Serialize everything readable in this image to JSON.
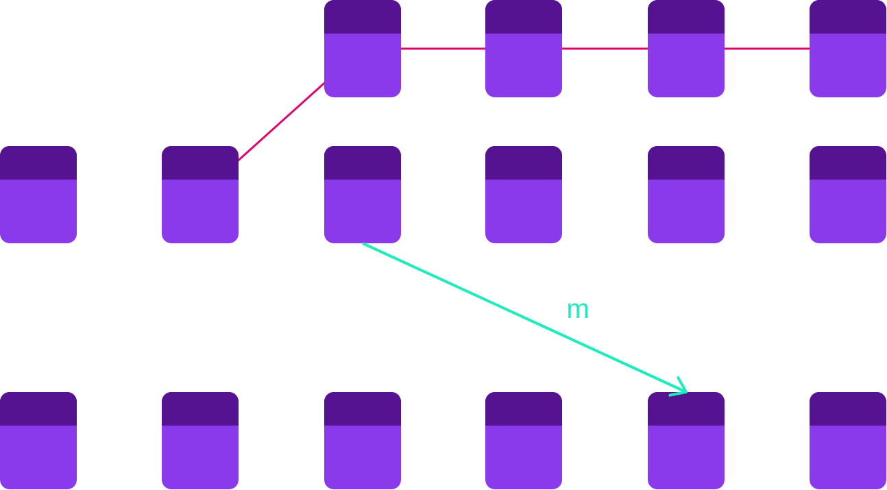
{
  "colors": {
    "background": "#ffffff",
    "node_header": "#561391",
    "node_body": "#8b3aeb",
    "path_line": "#e0056f",
    "arrow": "#20ebbd"
  },
  "nodes": [
    {
      "id": "r1c3",
      "row": 1,
      "col": 3
    },
    {
      "id": "r1c4",
      "row": 1,
      "col": 4
    },
    {
      "id": "r1c5",
      "row": 1,
      "col": 5
    },
    {
      "id": "r1c6",
      "row": 1,
      "col": 6
    },
    {
      "id": "r2c1",
      "row": 2,
      "col": 1
    },
    {
      "id": "r2c2",
      "row": 2,
      "col": 2
    },
    {
      "id": "r2c3",
      "row": 2,
      "col": 3
    },
    {
      "id": "r2c4",
      "row": 2,
      "col": 4
    },
    {
      "id": "r2c5",
      "row": 2,
      "col": 5
    },
    {
      "id": "r2c6",
      "row": 2,
      "col": 6
    },
    {
      "id": "r3c1",
      "row": 3,
      "col": 1
    },
    {
      "id": "r3c2",
      "row": 3,
      "col": 2
    },
    {
      "id": "r3c3",
      "row": 3,
      "col": 3
    },
    {
      "id": "r3c4",
      "row": 3,
      "col": 4
    },
    {
      "id": "r3c5",
      "row": 3,
      "col": 5
    },
    {
      "id": "r3c6",
      "row": 3,
      "col": 6
    }
  ],
  "path_edges": [
    {
      "from": "r2c2",
      "to": "r1c3"
    },
    {
      "from": "r1c3",
      "to": "r1c4"
    },
    {
      "from": "r1c4",
      "to": "r1c5"
    },
    {
      "from": "r1c5",
      "to": "r1c6"
    }
  ],
  "arrow": {
    "from": "r2c3",
    "to": "r3c5",
    "label": "m"
  }
}
